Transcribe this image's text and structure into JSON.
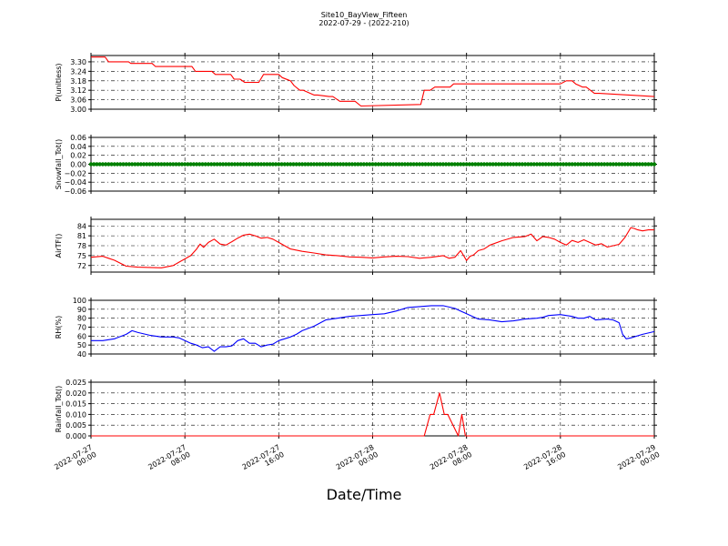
{
  "figure": {
    "title": "Site10_BayView_Fifteen",
    "subtitle": "2022-07-29 - (2022-210)",
    "xlabel": "Date/Time"
  },
  "chart_data": [
    {
      "type": "line",
      "ylabel": "P(unitless)",
      "ylim": [
        3.0,
        3.34
      ],
      "yticks": [
        "3.30",
        "3.24",
        "3.18",
        "3.12",
        "3.06",
        "3.00"
      ],
      "color": "#ff0000",
      "grid": true,
      "x_hours": [
        0,
        1.2,
        1.5,
        3.2,
        3.4,
        5.2,
        5.5,
        8.6,
        8.9,
        10.3,
        10.6,
        11.9,
        12.2,
        12.7,
        13.1,
        14.3,
        14.7,
        16,
        16.3,
        17,
        17.3,
        17.8,
        18.1,
        19,
        19.3,
        20.3,
        20.6,
        21.2,
        21.5,
        22.5,
        23,
        28.1,
        28.4,
        28.9,
        29.3,
        30.6,
        30.9,
        40,
        40.5,
        41,
        41.3,
        41.9,
        42.2,
        42.9,
        43.3,
        48
      ],
      "values": [
        3.33,
        3.33,
        3.3,
        3.3,
        3.29,
        3.29,
        3.27,
        3.27,
        3.24,
        3.24,
        3.22,
        3.22,
        3.19,
        3.19,
        3.17,
        3.17,
        3.22,
        3.22,
        3.2,
        3.18,
        3.15,
        3.12,
        3.12,
        3.09,
        3.09,
        3.08,
        3.08,
        3.05,
        3.05,
        3.05,
        3.02,
        3.03,
        3.12,
        3.12,
        3.14,
        3.14,
        3.16,
        3.16,
        3.18,
        3.18,
        3.16,
        3.14,
        3.14,
        3.1,
        3.1,
        3.08
      ]
    },
    {
      "type": "scatter",
      "ylabel": "Snowfall_Tot()",
      "ylim": [
        -0.06,
        0.06
      ],
      "yticks": [
        "0.06",
        "0.04",
        "0.02",
        "0.00",
        "−0.02",
        "−0.04",
        "−0.06"
      ],
      "color": "#008000",
      "grid": true,
      "constant_value": 0.0
    },
    {
      "type": "line",
      "ylabel": "AirTF()",
      "ylim": [
        70,
        86
      ],
      "yticks": [
        "84",
        "81",
        "78",
        "75",
        "72"
      ],
      "color": "#ff0000",
      "grid": true,
      "x_hours": [
        0,
        1,
        1.5,
        2,
        3,
        4,
        5,
        6,
        7,
        7.5,
        8,
        8.5,
        9,
        9.3,
        9.6,
        10,
        10.5,
        11,
        11.5,
        12,
        12.5,
        13,
        13.5,
        14,
        14.5,
        15,
        15.5,
        16,
        17,
        18,
        19,
        20,
        21,
        22,
        23,
        24,
        25,
        26,
        27,
        28,
        29,
        30,
        30.5,
        31,
        31.5,
        32,
        32.3,
        32.6,
        33,
        33.5,
        34,
        35,
        36,
        37,
        37.5,
        38,
        38.5,
        39,
        39.5,
        40,
        40.5,
        41,
        41.5,
        42,
        43,
        43.5,
        44,
        45,
        45.5,
        46,
        46.3,
        46.6,
        47,
        47.5,
        48
      ],
      "values": [
        74.5,
        74.8,
        74.2,
        73.6,
        71.8,
        71.5,
        71.4,
        71.3,
        72,
        73,
        74,
        75,
        77,
        78.5,
        77.5,
        79,
        80,
        78.5,
        78.2,
        79.2,
        80.3,
        81.2,
        81.5,
        81,
        80.3,
        80.5,
        80,
        79,
        77,
        76.3,
        75.8,
        75.2,
        75,
        74.6,
        74.5,
        74.3,
        74.6,
        74.8,
        74.7,
        74.2,
        74.5,
        75,
        74.2,
        74.5,
        76.5,
        73.5,
        74.8,
        75.2,
        76.5,
        77,
        78.2,
        79.5,
        80.5,
        80.8,
        81.5,
        79.5,
        80.8,
        80.5,
        80,
        79,
        78.2,
        79.6,
        79,
        79.8,
        78.2,
        78.6,
        77.6,
        78.4,
        80.5,
        83.5,
        83.2,
        82.8,
        82.5,
        82.8,
        82.8
      ]
    },
    {
      "type": "line",
      "ylabel": "RH(%)",
      "ylim": [
        40,
        100
      ],
      "yticks": [
        "100",
        "90",
        "80",
        "70",
        "60",
        "50",
        "40"
      ],
      "color": "#0000ff",
      "grid": true,
      "x_hours": [
        0,
        1,
        2,
        3,
        3.5,
        4,
        5,
        6,
        7,
        7.5,
        8,
        8.5,
        9,
        9.5,
        10,
        10.5,
        11,
        11.5,
        12,
        12.5,
        13,
        13.5,
        14,
        14.5,
        15,
        15.5,
        16,
        16.5,
        17,
        17.5,
        18,
        19,
        20,
        21,
        22,
        23,
        24,
        25,
        26,
        27,
        28,
        29,
        30,
        31,
        32,
        33,
        34,
        35,
        36,
        37,
        38,
        38.5,
        39,
        40,
        41,
        41.5,
        42,
        42.5,
        43,
        44,
        44.5,
        45,
        45.3,
        45.6,
        46,
        47,
        48
      ],
      "values": [
        55,
        55,
        57,
        62,
        66,
        64,
        61,
        59,
        59,
        58,
        55,
        52,
        50,
        47,
        48,
        43,
        48,
        48,
        49,
        55,
        57,
        52,
        52,
        48,
        50,
        51,
        55,
        57,
        59,
        62,
        66,
        71,
        78,
        80,
        82,
        83,
        84,
        85,
        88,
        92,
        93,
        94,
        94,
        91,
        85,
        79,
        78,
        76,
        77,
        79,
        80,
        81,
        83,
        84,
        82,
        80,
        80,
        82,
        78,
        79,
        78,
        75,
        62,
        57,
        58,
        62,
        65
      ]
    },
    {
      "type": "line",
      "ylabel": "Rainfall_Tot()",
      "ylim": [
        0,
        0.025
      ],
      "yticks": [
        "0.025",
        "0.020",
        "0.015",
        "0.010",
        "0.005",
        "0.000"
      ],
      "color": "#ff0000",
      "grid": true,
      "x_hours": [
        0,
        28,
        28.4,
        28.9,
        29.2,
        29.7,
        30.1,
        30.4,
        31.3,
        31.6,
        31.9,
        48
      ],
      "values": [
        0,
        0,
        0,
        0.01,
        0.01,
        0.02,
        0.01,
        0.01,
        0,
        0.01,
        0,
        0
      ]
    }
  ],
  "x_axis": {
    "range_hours": [
      0,
      48
    ],
    "tick_hours": [
      0,
      8,
      16,
      24,
      32,
      40,
      48
    ],
    "tick_labels": [
      [
        "2022-07-27",
        "00:00"
      ],
      [
        "2022-07-27",
        "08:00"
      ],
      [
        "2022-07-27",
        "16:00"
      ],
      [
        "2022-07-28",
        "00:00"
      ],
      [
        "2022-07-28",
        "08:00"
      ],
      [
        "2022-07-28",
        "16:00"
      ],
      [
        "2022-07-29",
        "00:00"
      ]
    ]
  }
}
